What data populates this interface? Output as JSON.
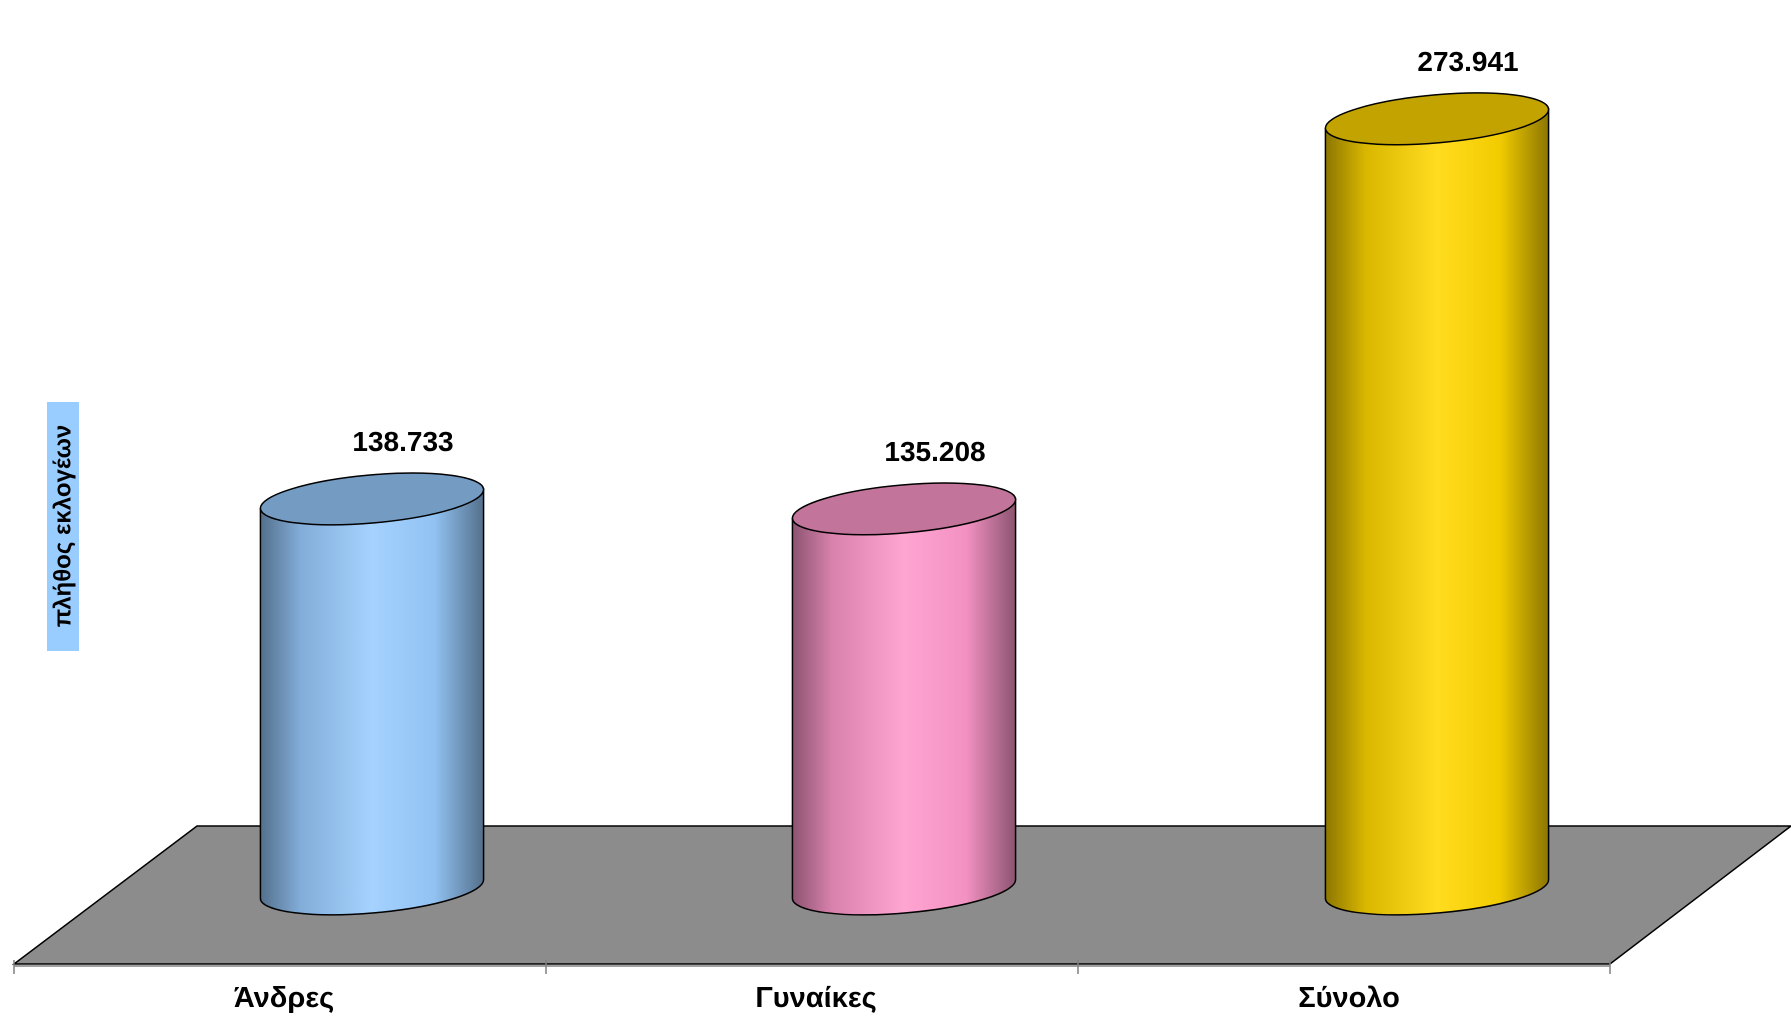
{
  "chart_data": {
    "type": "bar",
    "style": "3d-cylinder",
    "categories": [
      "Άνδρες",
      "Γυναίκες",
      "Σύνολο"
    ],
    "values": [
      138733,
      135208,
      273941
    ],
    "value_labels": [
      "138.733",
      "135.208",
      "273.941"
    ],
    "ylabel": "πλήθος εκλογέων",
    "ylim": [
      0,
      280000
    ],
    "grid": false,
    "legend": "none",
    "colors": [
      "#99ccff",
      "#ff99cc",
      "#ffd700"
    ],
    "ylabel_background": "#99ccff",
    "floor_color": "#8c8c8c"
  }
}
